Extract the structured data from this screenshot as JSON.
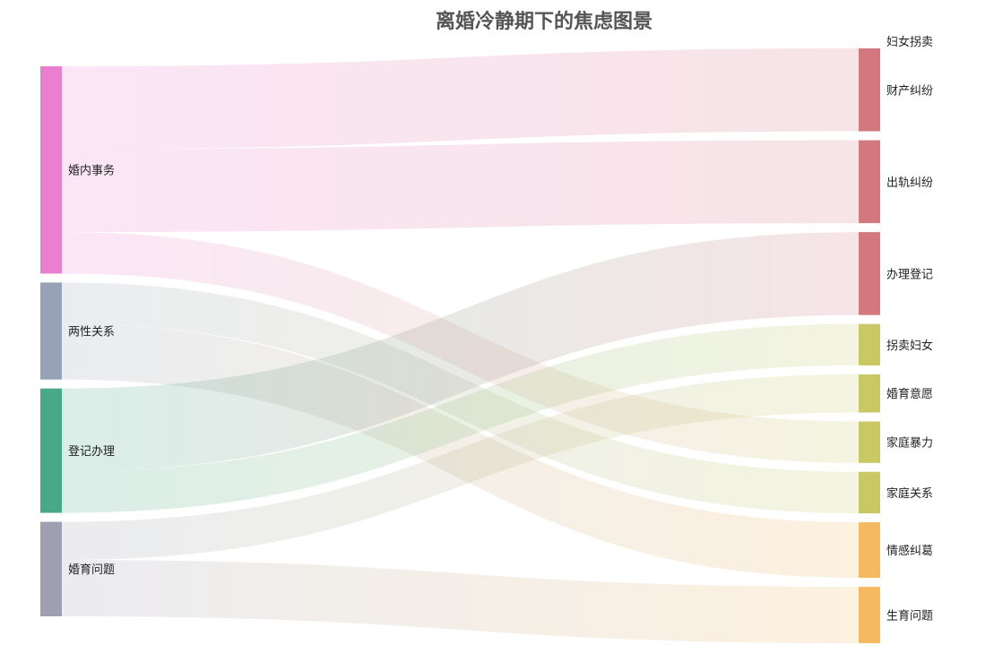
{
  "chart_data": {
    "type": "sankey",
    "title": "离婚冷静期下的焦虑图景",
    "source_nodes": [
      {
        "name": "婚内事务",
        "color": "#EA7FCF"
      },
      {
        "name": "两性关系",
        "color": "#98A2B7"
      },
      {
        "name": "登记办理",
        "color": "#48A988"
      },
      {
        "name": "婚育问题",
        "color": "#9EA0B2"
      }
    ],
    "target_nodes": [
      {
        "name": "妇女拐卖",
        "color": "#D4787F"
      },
      {
        "name": "财产纠纷",
        "color": "#D4787F"
      },
      {
        "name": "出轨纠纷",
        "color": "#D4787F"
      },
      {
        "name": "办理登记",
        "color": "#D4787F"
      },
      {
        "name": "拐卖妇女",
        "color": "#C9C865"
      },
      {
        "name": "婚育意愿",
        "color": "#C9C865"
      },
      {
        "name": "家庭暴力",
        "color": "#C9C865"
      },
      {
        "name": "家庭关系",
        "color": "#C9C865"
      },
      {
        "name": "情感纠葛",
        "color": "#F5B95F"
      },
      {
        "name": "生育问题",
        "color": "#F5B95F"
      }
    ],
    "links": [
      {
        "source": "婚内事务",
        "target": "妇女拐卖",
        "value": 0
      },
      {
        "source": "婚内事务",
        "target": "财产纠纷",
        "value": 10
      },
      {
        "source": "婚内事务",
        "target": "出轨纠纷",
        "value": 10
      },
      {
        "source": "婚内事务",
        "target": "家庭暴力",
        "value": 5
      },
      {
        "source": "两性关系",
        "target": "家庭关系",
        "value": 5
      },
      {
        "source": "两性关系",
        "target": "情感纠葛",
        "value": 6.7
      },
      {
        "source": "登记办理",
        "target": "办理登记",
        "value": 10
      },
      {
        "source": "登记办理",
        "target": "拐卖妇女",
        "value": 5
      },
      {
        "source": "婚育问题",
        "target": "婚育意愿",
        "value": 4.6
      },
      {
        "source": "婚育问题",
        "target": "生育问题",
        "value": 6.8
      }
    ]
  }
}
